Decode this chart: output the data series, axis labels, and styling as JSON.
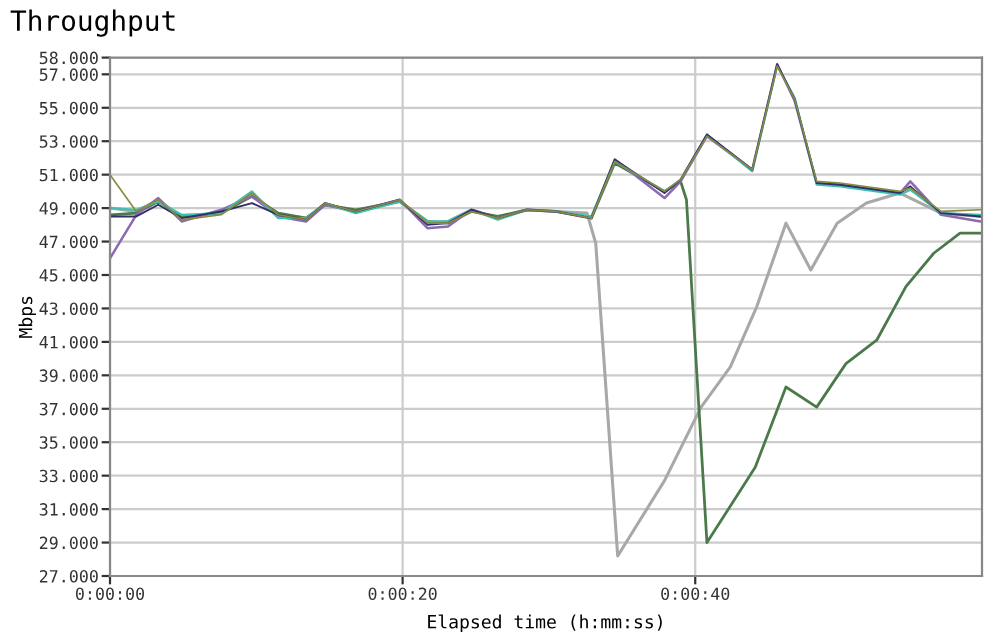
{
  "chart_data": {
    "type": "line",
    "title": "Throughput",
    "xlabel": "Elapsed time (h:mm:ss)",
    "ylabel": "Mbps",
    "xlim": [
      0,
      59.6
    ],
    "ylim": [
      27,
      58
    ],
    "xticks": [
      {
        "value": 0,
        "label": "0:00:00"
      },
      {
        "value": 20,
        "label": "0:00:20"
      },
      {
        "value": 40,
        "label": "0:00:40"
      }
    ],
    "yticks": [
      {
        "value": 27,
        "label": "27.000"
      },
      {
        "value": 29,
        "label": "29.000"
      },
      {
        "value": 31,
        "label": "31.000"
      },
      {
        "value": 33,
        "label": "33.000"
      },
      {
        "value": 35,
        "label": "35.000"
      },
      {
        "value": 37,
        "label": "37.000"
      },
      {
        "value": 39,
        "label": "39.000"
      },
      {
        "value": 41,
        "label": "41.000"
      },
      {
        "value": 43,
        "label": "43.000"
      },
      {
        "value": 45,
        "label": "45.000"
      },
      {
        "value": 47,
        "label": "47.000"
      },
      {
        "value": 49,
        "label": "49.000"
      },
      {
        "value": 51,
        "label": "51.000"
      },
      {
        "value": 53,
        "label": "53.000"
      },
      {
        "value": 55,
        "label": "55.000"
      },
      {
        "value": 57,
        "label": "57.000"
      },
      {
        "value": 58,
        "label": "58.000"
      }
    ],
    "grid": true,
    "legend": false,
    "marker": "none",
    "line_style": "solid",
    "series": [
      {
        "color": "#a8a8a8",
        "x": [
          0,
          1.8,
          3.3,
          4.9,
          7.6,
          9.7,
          11.5,
          13.4,
          14.7,
          16.8,
          19.8,
          21.7,
          23.1,
          24.7,
          26.5,
          28.5,
          30.5,
          32.6,
          33.2,
          34.7,
          37.9,
          40.4,
          42.4,
          44.2,
          46.2,
          47.9,
          49.7,
          51.7,
          54.0,
          56.8,
          59.5
        ],
        "values": [
          49.0,
          48.8,
          49.5,
          48.4,
          48.8,
          49.8,
          48.6,
          48.4,
          49.2,
          48.8,
          49.4,
          48.1,
          48.2,
          48.9,
          48.4,
          48.9,
          48.8,
          48.7,
          46.9,
          28.2,
          32.7,
          37.1,
          39.5,
          43.1,
          48.1,
          45.3,
          48.1,
          49.3,
          49.9,
          48.7,
          48.5
        ]
      },
      {
        "color": "#4a7a4a",
        "x": [
          0,
          1.8,
          3.3,
          4.9,
          7.6,
          9.7,
          11.5,
          13.4,
          14.7,
          16.8,
          19.8,
          21.7,
          23.1,
          24.7,
          26.5,
          28.5,
          30.5,
          32.9,
          34.5,
          37.9,
          39.0,
          39.4,
          40.8,
          44.1,
          46.2,
          48.3,
          50.3,
          52.4,
          54.4,
          56.3,
          58.1,
          59.5
        ],
        "values": [
          48.6,
          48.7,
          49.4,
          48.5,
          48.7,
          49.7,
          48.7,
          48.4,
          49.2,
          48.9,
          49.4,
          48.2,
          48.1,
          48.8,
          48.5,
          48.9,
          48.8,
          48.4,
          51.7,
          50.0,
          50.6,
          49.5,
          29.0,
          33.5,
          38.3,
          37.1,
          39.7,
          41.1,
          44.3,
          46.3,
          47.5,
          47.5
        ]
      },
      {
        "color": "#8c6ab0",
        "x": [
          0,
          1.8,
          3.3,
          4.9,
          7.6,
          9.7,
          11.5,
          13.4,
          14.7,
          16.8,
          19.8,
          21.7,
          23.1,
          24.7,
          26.5,
          28.5,
          30.5,
          32.9,
          34.5,
          37.9,
          39.0,
          40.8,
          43.9,
          45.6,
          46.8,
          48.3,
          49.9,
          54.0,
          54.7,
          56.8,
          59.5
        ],
        "values": [
          46.0,
          48.6,
          49.6,
          48.2,
          48.9,
          49.7,
          48.5,
          48.2,
          49.2,
          48.8,
          49.5,
          47.8,
          47.9,
          48.9,
          48.4,
          48.9,
          48.8,
          48.4,
          51.9,
          49.6,
          50.6,
          53.3,
          51.3,
          57.6,
          55.4,
          50.5,
          50.4,
          49.9,
          50.6,
          48.6,
          48.2
        ]
      },
      {
        "color": "#40c0b0",
        "x": [
          0,
          1.8,
          3.3,
          4.9,
          7.6,
          9.7,
          11.5,
          13.4,
          14.7,
          16.8,
          19.8,
          21.7,
          23.1,
          24.7,
          26.5,
          28.5,
          30.5,
          32.9,
          34.5,
          37.9,
          39.0,
          40.8,
          43.9,
          45.6,
          46.8,
          48.3,
          49.9,
          54.0,
          54.7,
          56.8,
          59.5
        ],
        "values": [
          49.0,
          48.9,
          49.4,
          48.6,
          48.7,
          50.0,
          48.4,
          48.4,
          49.3,
          48.7,
          49.4,
          48.2,
          48.2,
          48.9,
          48.3,
          48.9,
          48.8,
          48.5,
          51.8,
          50.0,
          50.7,
          53.4,
          51.2,
          57.5,
          55.6,
          50.4,
          50.3,
          49.8,
          50.1,
          48.7,
          48.6
        ]
      },
      {
        "color": "#30306a",
        "x": [
          0,
          1.8,
          3.3,
          4.9,
          7.6,
          9.7,
          11.5,
          13.4,
          14.7,
          16.8,
          19.8,
          21.7,
          23.1,
          24.7,
          26.5,
          28.5,
          30.5,
          32.9,
          34.5,
          37.9,
          39.0,
          40.8,
          43.9,
          45.6,
          46.8,
          48.3,
          49.9,
          54.0,
          54.7,
          56.8,
          59.5
        ],
        "values": [
          48.5,
          48.5,
          49.2,
          48.4,
          48.8,
          49.3,
          48.6,
          48.3,
          49.3,
          48.8,
          49.5,
          48.0,
          48.1,
          48.9,
          48.4,
          48.9,
          48.8,
          48.4,
          51.9,
          49.9,
          50.7,
          53.4,
          51.3,
          57.6,
          55.5,
          50.5,
          50.4,
          49.9,
          50.3,
          48.7,
          48.5
        ]
      },
      {
        "color": "#8a8a40",
        "x": [
          0,
          1.8,
          3.3,
          4.9,
          7.6,
          9.7,
          11.5,
          13.4,
          14.7,
          16.8,
          19.8,
          21.7,
          23.1,
          24.7,
          26.5,
          28.5,
          30.5,
          32.9,
          34.5,
          37.9,
          39.0,
          40.8,
          43.9,
          45.6,
          46.8,
          48.3,
          49.9,
          54.0,
          54.7,
          56.8,
          59.5
        ],
        "values": [
          51.0,
          48.8,
          49.5,
          48.3,
          48.6,
          49.9,
          48.6,
          48.3,
          49.3,
          48.8,
          49.5,
          48.1,
          48.1,
          48.8,
          48.4,
          48.9,
          48.8,
          48.4,
          51.8,
          50.0,
          50.7,
          53.3,
          51.3,
          57.5,
          55.5,
          50.6,
          50.5,
          50.0,
          50.2,
          48.8,
          48.9
        ]
      }
    ]
  }
}
